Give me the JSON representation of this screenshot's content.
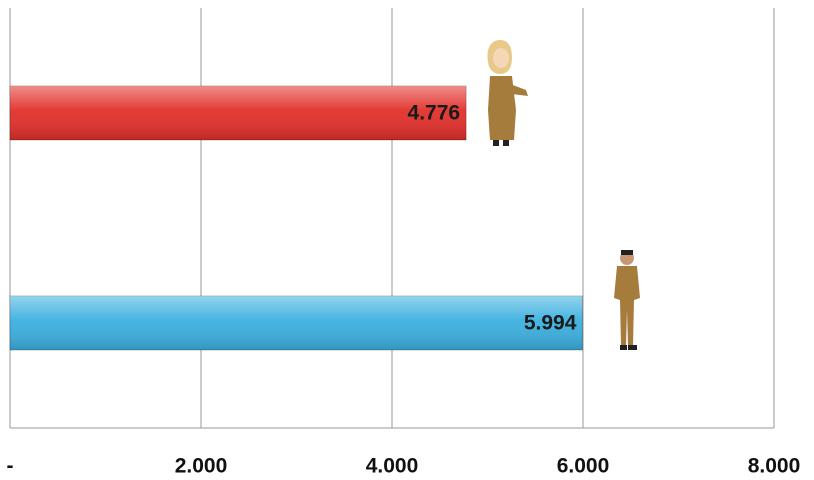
{
  "chart_data": {
    "type": "hbar",
    "categories": [
      null,
      null
    ],
    "values": [
      4776,
      5994
    ],
    "value_labels": [
      "4.776",
      "5.994"
    ],
    "colors": [
      "#e2302b",
      "#3cb0e0"
    ],
    "xlim": [
      0,
      8000
    ],
    "xticks": [
      {
        "value": 0,
        "label": "-"
      },
      {
        "value": 2000,
        "label": "2.000"
      },
      {
        "value": 4000,
        "label": "4.000"
      },
      {
        "value": 6000,
        "label": "6.000"
      },
      {
        "value": 8000,
        "label": "8.000"
      }
    ],
    "grid": true
  }
}
